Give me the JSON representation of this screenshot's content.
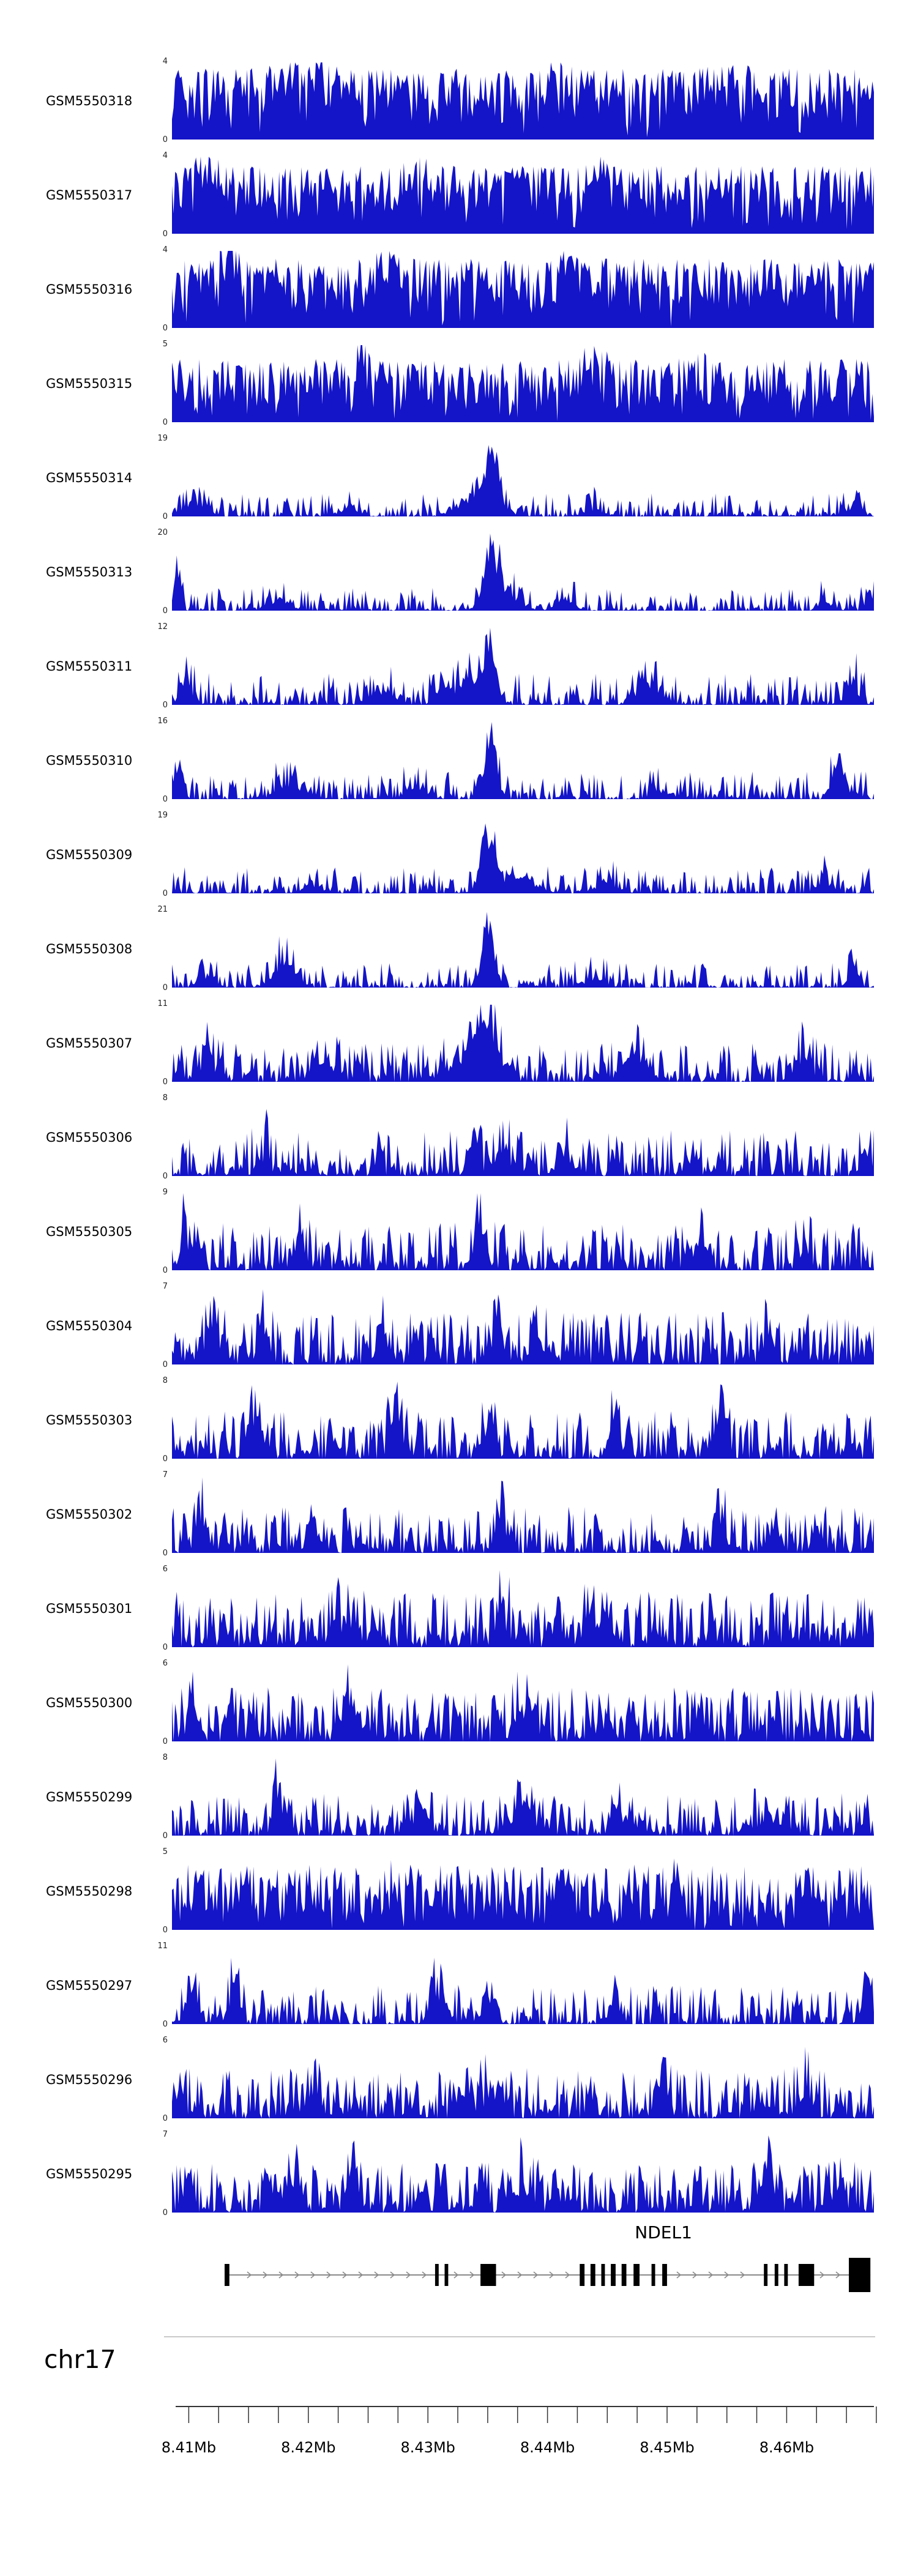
{
  "chart_data": {
    "type": "area",
    "title": "",
    "region": {
      "chromosome": "chr17",
      "start_mb": 8.4086,
      "end_mb": 8.4673
    },
    "signal_color": "#1414C8",
    "grid": false,
    "legend": "none",
    "x_ticks": [
      {
        "value_mb": 8.41,
        "label": "8.41Mb"
      },
      {
        "value_mb": 8.42,
        "label": "8.42Mb"
      },
      {
        "value_mb": 8.43,
        "label": "8.43Mb"
      },
      {
        "value_mb": 8.44,
        "label": "8.44Mb"
      },
      {
        "value_mb": 8.45,
        "label": "8.45Mb"
      },
      {
        "value_mb": 8.46,
        "label": "8.46Mb"
      }
    ],
    "ruler": {
      "tick_start_mb": 8.41,
      "tick_step_mb": 0.0025,
      "tick_end_mb": 8.4675
    },
    "tracks": [
      {
        "label": "GSM5550318",
        "ymin": 0,
        "ymax": 4,
        "seed": 318,
        "base": 0.92,
        "sparsity": 0.5,
        "peaks": [
          {
            "c": 0.19,
            "w": 0.05,
            "h": 0.25
          },
          {
            "c": 0.55,
            "w": 0.02,
            "h": 0.2
          },
          {
            "c": 0.8,
            "w": 0.03,
            "h": 0.15
          }
        ]
      },
      {
        "label": "GSM5550317",
        "ymin": 0,
        "ymax": 4,
        "seed": 317,
        "base": 0.88,
        "sparsity": 0.55,
        "peaks": [
          {
            "c": 0.05,
            "w": 0.02,
            "h": 0.3
          },
          {
            "c": 0.35,
            "w": 0.03,
            "h": 0.2
          },
          {
            "c": 0.62,
            "w": 0.02,
            "h": 0.25
          }
        ]
      },
      {
        "label": "GSM5550316",
        "ymin": 0,
        "ymax": 4,
        "seed": 316,
        "base": 0.9,
        "sparsity": 0.5,
        "peaks": [
          {
            "c": 0.08,
            "w": 0.015,
            "h": 0.35
          },
          {
            "c": 0.3,
            "w": 0.02,
            "h": 0.3
          },
          {
            "c": 0.56,
            "w": 0.015,
            "h": 0.3
          }
        ]
      },
      {
        "label": "GSM5550315",
        "ymin": 0,
        "ymax": 5,
        "seed": 315,
        "base": 0.82,
        "sparsity": 0.6,
        "peaks": [
          {
            "c": 0.27,
            "w": 0.008,
            "h": 0.55
          },
          {
            "c": 0.6,
            "w": 0.03,
            "h": 0.2
          },
          {
            "c": 0.75,
            "w": 0.02,
            "h": 0.2
          }
        ]
      },
      {
        "label": "GSM5550314",
        "ymin": 0,
        "ymax": 19,
        "seed": 314,
        "base": 0.3,
        "sparsity": 3,
        "peaks": [
          {
            "c": 0.455,
            "w": 0.012,
            "h": 0.95
          },
          {
            "c": 0.44,
            "w": 0.035,
            "h": 0.35
          },
          {
            "c": 0.03,
            "w": 0.02,
            "h": 0.25
          },
          {
            "c": 0.25,
            "w": 0.02,
            "h": 0.12
          },
          {
            "c": 0.6,
            "w": 0.02,
            "h": 0.12
          },
          {
            "c": 0.97,
            "w": 0.015,
            "h": 0.15
          }
        ]
      },
      {
        "label": "GSM5550313",
        "ymin": 0,
        "ymax": 20,
        "seed": 313,
        "base": 0.3,
        "sparsity": 3,
        "peaks": [
          {
            "c": 0.455,
            "w": 0.012,
            "h": 0.95
          },
          {
            "c": 0.47,
            "w": 0.03,
            "h": 0.3
          },
          {
            "c": 0.008,
            "w": 0.006,
            "h": 0.8
          },
          {
            "c": 0.15,
            "w": 0.02,
            "h": 0.18
          },
          {
            "c": 0.56,
            "w": 0.015,
            "h": 0.22
          },
          {
            "c": 0.93,
            "w": 0.01,
            "h": 0.25
          },
          {
            "c": 0.995,
            "w": 0.008,
            "h": 0.3
          }
        ]
      },
      {
        "label": "GSM5550311",
        "ymin": 0,
        "ymax": 12,
        "seed": 311,
        "base": 0.42,
        "sparsity": 2.4,
        "peaks": [
          {
            "c": 0.452,
            "w": 0.013,
            "h": 0.9
          },
          {
            "c": 0.42,
            "w": 0.03,
            "h": 0.4
          },
          {
            "c": 0.02,
            "w": 0.012,
            "h": 0.45
          },
          {
            "c": 0.3,
            "w": 0.02,
            "h": 0.25
          },
          {
            "c": 0.68,
            "w": 0.025,
            "h": 0.3
          },
          {
            "c": 0.97,
            "w": 0.012,
            "h": 0.4
          }
        ]
      },
      {
        "label": "GSM5550310",
        "ymin": 0,
        "ymax": 16,
        "seed": 310,
        "base": 0.36,
        "sparsity": 2.6,
        "peaks": [
          {
            "c": 0.453,
            "w": 0.013,
            "h": 0.95
          },
          {
            "c": 0.01,
            "w": 0.008,
            "h": 0.55
          },
          {
            "c": 0.17,
            "w": 0.025,
            "h": 0.3
          },
          {
            "c": 0.35,
            "w": 0.02,
            "h": 0.2
          },
          {
            "c": 0.95,
            "w": 0.012,
            "h": 0.7
          },
          {
            "c": 0.7,
            "w": 0.02,
            "h": 0.15
          }
        ]
      },
      {
        "label": "GSM5550309",
        "ymin": 0,
        "ymax": 19,
        "seed": 309,
        "base": 0.34,
        "sparsity": 2.8,
        "peaks": [
          {
            "c": 0.45,
            "w": 0.012,
            "h": 0.95
          },
          {
            "c": 0.48,
            "w": 0.04,
            "h": 0.3
          },
          {
            "c": 0.2,
            "w": 0.02,
            "h": 0.15
          },
          {
            "c": 0.62,
            "w": 0.02,
            "h": 0.2
          },
          {
            "c": 0.93,
            "w": 0.012,
            "h": 0.25
          }
        ]
      },
      {
        "label": "GSM5550308",
        "ymin": 0,
        "ymax": 21,
        "seed": 308,
        "base": 0.32,
        "sparsity": 2.8,
        "peaks": [
          {
            "c": 0.45,
            "w": 0.012,
            "h": 0.95
          },
          {
            "c": 0.16,
            "w": 0.02,
            "h": 0.45
          },
          {
            "c": 0.05,
            "w": 0.015,
            "h": 0.2
          },
          {
            "c": 0.6,
            "w": 0.02,
            "h": 0.15
          },
          {
            "c": 0.97,
            "w": 0.01,
            "h": 0.28
          }
        ]
      },
      {
        "label": "GSM5550307",
        "ymin": 0,
        "ymax": 11,
        "seed": 307,
        "base": 0.5,
        "sparsity": 2,
        "peaks": [
          {
            "c": 0.45,
            "w": 0.02,
            "h": 0.85
          },
          {
            "c": 0.42,
            "w": 0.04,
            "h": 0.35
          },
          {
            "c": 0.05,
            "w": 0.015,
            "h": 0.4
          },
          {
            "c": 0.22,
            "w": 0.02,
            "h": 0.3
          },
          {
            "c": 0.66,
            "w": 0.02,
            "h": 0.5
          },
          {
            "c": 0.9,
            "w": 0.015,
            "h": 0.4
          }
        ]
      },
      {
        "label": "GSM5550306",
        "ymin": 0,
        "ymax": 8,
        "seed": 306,
        "base": 0.6,
        "sparsity": 1.8,
        "peaks": [
          {
            "c": 0.43,
            "w": 0.01,
            "h": 0.6
          },
          {
            "c": 0.47,
            "w": 0.012,
            "h": 0.55
          },
          {
            "c": 0.56,
            "w": 0.015,
            "h": 0.4
          },
          {
            "c": 0.13,
            "w": 0.012,
            "h": 0.35
          },
          {
            "c": 0.99,
            "w": 0.008,
            "h": 0.5
          }
        ]
      },
      {
        "label": "GSM5550305",
        "ymin": 0,
        "ymax": 9,
        "seed": 305,
        "base": 0.62,
        "sparsity": 1.8,
        "peaks": [
          {
            "c": 0.02,
            "w": 0.01,
            "h": 0.6
          },
          {
            "c": 0.18,
            "w": 0.012,
            "h": 0.5
          },
          {
            "c": 0.44,
            "w": 0.012,
            "h": 0.55
          },
          {
            "c": 0.75,
            "w": 0.015,
            "h": 0.3
          },
          {
            "c": 0.9,
            "w": 0.01,
            "h": 0.35
          }
        ]
      },
      {
        "label": "GSM5550304",
        "ymin": 0,
        "ymax": 7,
        "seed": 304,
        "base": 0.68,
        "sparsity": 1.5,
        "peaks": [
          {
            "c": 0.06,
            "w": 0.012,
            "h": 0.5
          },
          {
            "c": 0.13,
            "w": 0.01,
            "h": 0.55
          },
          {
            "c": 0.3,
            "w": 0.012,
            "h": 0.4
          },
          {
            "c": 0.46,
            "w": 0.012,
            "h": 0.55
          },
          {
            "c": 0.52,
            "w": 0.01,
            "h": 0.45
          },
          {
            "c": 0.85,
            "w": 0.012,
            "h": 0.35
          }
        ]
      },
      {
        "label": "GSM5550303",
        "ymin": 0,
        "ymax": 8,
        "seed": 303,
        "base": 0.62,
        "sparsity": 1.7,
        "peaks": [
          {
            "c": 0.12,
            "w": 0.012,
            "h": 0.55
          },
          {
            "c": 0.32,
            "w": 0.012,
            "h": 0.6
          },
          {
            "c": 0.45,
            "w": 0.01,
            "h": 0.5
          },
          {
            "c": 0.63,
            "w": 0.012,
            "h": 0.4
          },
          {
            "c": 0.78,
            "w": 0.012,
            "h": 0.45
          }
        ]
      },
      {
        "label": "GSM5550302",
        "ymin": 0,
        "ymax": 7,
        "seed": 302,
        "base": 0.6,
        "sparsity": 1.8,
        "peaks": [
          {
            "c": 0.04,
            "w": 0.008,
            "h": 0.8
          },
          {
            "c": 0.2,
            "w": 0.012,
            "h": 0.4
          },
          {
            "c": 0.47,
            "w": 0.012,
            "h": 0.45
          },
          {
            "c": 0.78,
            "w": 0.01,
            "h": 0.6
          },
          {
            "c": 0.92,
            "w": 0.01,
            "h": 0.4
          }
        ]
      },
      {
        "label": "GSM5550301",
        "ymin": 0,
        "ymax": 6,
        "seed": 301,
        "base": 0.72,
        "sparsity": 1.3,
        "peaks": [
          {
            "c": 0.25,
            "w": 0.02,
            "h": 0.3
          },
          {
            "c": 0.47,
            "w": 0.012,
            "h": 0.5
          },
          {
            "c": 0.6,
            "w": 0.015,
            "h": 0.3
          }
        ]
      },
      {
        "label": "GSM5550300",
        "ymin": 0,
        "ymax": 6,
        "seed": 300,
        "base": 0.7,
        "sparsity": 1.4,
        "peaks": [
          {
            "c": 0.03,
            "w": 0.01,
            "h": 0.5
          },
          {
            "c": 0.25,
            "w": 0.012,
            "h": 0.55
          },
          {
            "c": 0.5,
            "w": 0.015,
            "h": 0.35
          },
          {
            "c": 0.75,
            "w": 0.012,
            "h": 0.3
          }
        ]
      },
      {
        "label": "GSM5550299",
        "ymin": 0,
        "ymax": 8,
        "seed": 299,
        "base": 0.55,
        "sparsity": 1.9,
        "peaks": [
          {
            "c": 0.15,
            "w": 0.008,
            "h": 0.7
          },
          {
            "c": 0.35,
            "w": 0.02,
            "h": 0.25
          },
          {
            "c": 0.5,
            "w": 0.03,
            "h": 0.35
          },
          {
            "c": 0.65,
            "w": 0.02,
            "h": 0.3
          },
          {
            "c": 0.85,
            "w": 0.02,
            "h": 0.3
          }
        ]
      },
      {
        "label": "GSM5550298",
        "ymin": 0,
        "ymax": 5,
        "seed": 298,
        "base": 0.85,
        "sparsity": 0.7,
        "peaks": [
          {
            "c": 0.72,
            "w": 0.008,
            "h": 0.45
          },
          {
            "c": 0.3,
            "w": 0.02,
            "h": 0.15
          },
          {
            "c": 0.55,
            "w": 0.02,
            "h": 0.15
          }
        ]
      },
      {
        "label": "GSM5550297",
        "ymin": 0,
        "ymax": 11,
        "seed": 297,
        "base": 0.5,
        "sparsity": 2.2,
        "peaks": [
          {
            "c": 0.03,
            "w": 0.01,
            "h": 0.7
          },
          {
            "c": 0.09,
            "w": 0.01,
            "h": 0.6
          },
          {
            "c": 0.38,
            "w": 0.015,
            "h": 0.5
          },
          {
            "c": 0.45,
            "w": 0.012,
            "h": 0.45
          },
          {
            "c": 0.63,
            "w": 0.012,
            "h": 0.35
          },
          {
            "c": 0.99,
            "w": 0.008,
            "h": 0.7
          }
        ]
      },
      {
        "label": "GSM5550296",
        "ymin": 0,
        "ymax": 6,
        "seed": 296,
        "base": 0.66,
        "sparsity": 1.5,
        "peaks": [
          {
            "c": 0.7,
            "w": 0.01,
            "h": 0.6
          },
          {
            "c": 0.45,
            "w": 0.015,
            "h": 0.35
          },
          {
            "c": 0.2,
            "w": 0.015,
            "h": 0.3
          },
          {
            "c": 0.9,
            "w": 0.012,
            "h": 0.4
          }
        ]
      },
      {
        "label": "GSM5550295",
        "ymin": 0,
        "ymax": 7,
        "seed": 295,
        "base": 0.66,
        "sparsity": 1.5,
        "peaks": [
          {
            "c": 0.17,
            "w": 0.01,
            "h": 0.6
          },
          {
            "c": 0.26,
            "w": 0.01,
            "h": 0.55
          },
          {
            "c": 0.5,
            "w": 0.015,
            "h": 0.4
          },
          {
            "c": 0.85,
            "w": 0.012,
            "h": 0.5
          },
          {
            "c": 0.95,
            "w": 0.01,
            "h": 0.45
          }
        ]
      }
    ],
    "gene_track": {
      "gene_name": "NDEL1",
      "strand_arrows": "right",
      "gene_start_mb": 8.413,
      "gene_end_mb": 8.467,
      "name_label_mb": 8.4497,
      "exons": [
        {
          "start_mb": 8.413,
          "end_mb": 8.4134,
          "tall": false
        },
        {
          "start_mb": 8.4306,
          "end_mb": 8.4309,
          "tall": false
        },
        {
          "start_mb": 8.4314,
          "end_mb": 8.4317,
          "tall": false
        },
        {
          "start_mb": 8.4344,
          "end_mb": 8.4357,
          "tall": false
        },
        {
          "start_mb": 8.4427,
          "end_mb": 8.4431,
          "tall": false
        },
        {
          "start_mb": 8.4436,
          "end_mb": 8.444,
          "tall": false
        },
        {
          "start_mb": 8.4445,
          "end_mb": 8.4448,
          "tall": false
        },
        {
          "start_mb": 8.4453,
          "end_mb": 8.4457,
          "tall": false
        },
        {
          "start_mb": 8.4462,
          "end_mb": 8.4466,
          "tall": false
        },
        {
          "start_mb": 8.4472,
          "end_mb": 8.4477,
          "tall": false
        },
        {
          "start_mb": 8.4487,
          "end_mb": 8.449,
          "tall": false
        },
        {
          "start_mb": 8.4496,
          "end_mb": 8.45,
          "tall": false
        },
        {
          "start_mb": 8.4581,
          "end_mb": 8.4584,
          "tall": false
        },
        {
          "start_mb": 8.459,
          "end_mb": 8.4593,
          "tall": false
        },
        {
          "start_mb": 8.4598,
          "end_mb": 8.4601,
          "tall": false
        },
        {
          "start_mb": 8.461,
          "end_mb": 8.4623,
          "tall": false
        },
        {
          "start_mb": 8.4652,
          "end_mb": 8.467,
          "tall": true
        }
      ]
    }
  }
}
